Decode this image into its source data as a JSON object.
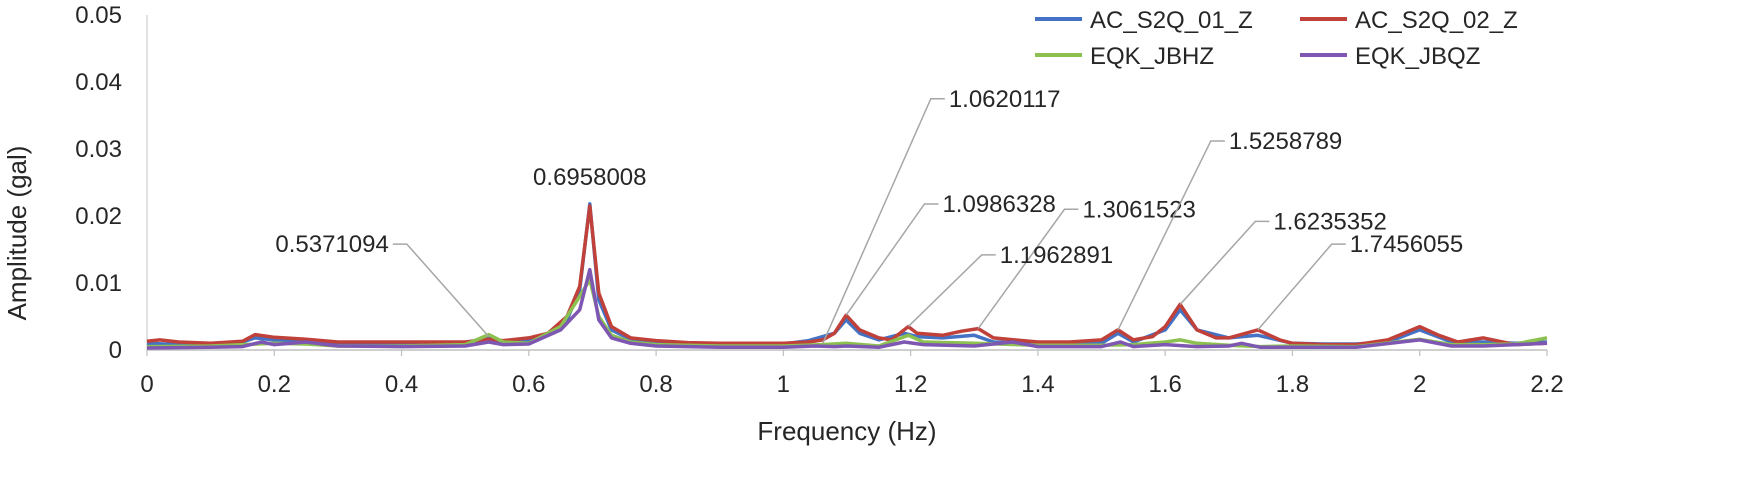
{
  "chart_data": {
    "type": "line",
    "title": "",
    "xlabel": "Frequency (Hz)",
    "ylabel": "Amplitude (gal)",
    "xlim": [
      0,
      2.2
    ],
    "ylim": [
      0,
      0.05
    ],
    "x_ticks": [
      "0",
      "0.2",
      "0.4",
      "0.6",
      "0.8",
      "1",
      "1.2",
      "1.4",
      "1.6",
      "1.8",
      "2",
      "2.2"
    ],
    "y_ticks": [
      "0",
      "0.01",
      "0.02",
      "0.03",
      "0.04",
      "0.05"
    ],
    "legend_position": "top-right",
    "series": [
      {
        "name": "AC_S2Q_01_Z",
        "color": "#4472C4",
        "points": [
          [
            0,
            0.001
          ],
          [
            0.05,
            0.0008
          ],
          [
            0.1,
            0.0009
          ],
          [
            0.15,
            0.0012
          ],
          [
            0.17,
            0.0018
          ],
          [
            0.2,
            0.0015
          ],
          [
            0.25,
            0.0013
          ],
          [
            0.3,
            0.001
          ],
          [
            0.35,
            0.0009
          ],
          [
            0.4,
            0.0009
          ],
          [
            0.45,
            0.001
          ],
          [
            0.5,
            0.0011
          ],
          [
            0.537,
            0.0018
          ],
          [
            0.56,
            0.0012
          ],
          [
            0.6,
            0.0015
          ],
          [
            0.63,
            0.0022
          ],
          [
            0.66,
            0.0045
          ],
          [
            0.68,
            0.009
          ],
          [
            0.6958,
            0.0218
          ],
          [
            0.71,
            0.0075
          ],
          [
            0.73,
            0.003
          ],
          [
            0.76,
            0.0016
          ],
          [
            0.8,
            0.0012
          ],
          [
            0.85,
            0.001
          ],
          [
            0.9,
            0.0009
          ],
          [
            0.95,
            0.0009
          ],
          [
            1.0,
            0.0009
          ],
          [
            1.04,
            0.0014
          ],
          [
            1.062,
            0.002
          ],
          [
            1.08,
            0.0025
          ],
          [
            1.0986,
            0.0045
          ],
          [
            1.12,
            0.0025
          ],
          [
            1.15,
            0.0015
          ],
          [
            1.19,
            0.0025
          ],
          [
            1.21,
            0.002
          ],
          [
            1.25,
            0.0018
          ],
          [
            1.3,
            0.0022
          ],
          [
            1.33,
            0.0012
          ],
          [
            1.4,
            0.001
          ],
          [
            1.45,
            0.001
          ],
          [
            1.5,
            0.001
          ],
          [
            1.526,
            0.0025
          ],
          [
            1.55,
            0.0012
          ],
          [
            1.6,
            0.003
          ],
          [
            1.6235,
            0.006
          ],
          [
            1.65,
            0.003
          ],
          [
            1.7,
            0.0018
          ],
          [
            1.7456,
            0.0022
          ],
          [
            1.8,
            0.001
          ],
          [
            1.85,
            0.0009
          ],
          [
            1.9,
            0.0009
          ],
          [
            1.95,
            0.0012
          ],
          [
            2.0,
            0.003
          ],
          [
            2.05,
            0.0012
          ],
          [
            2.1,
            0.0012
          ],
          [
            2.15,
            0.001
          ],
          [
            2.2,
            0.0012
          ]
        ]
      },
      {
        "name": "AC_S2Q_02_Z",
        "color": "#C0403A",
        "points": [
          [
            0,
            0.0013
          ],
          [
            0.02,
            0.0015
          ],
          [
            0.05,
            0.0012
          ],
          [
            0.1,
            0.001
          ],
          [
            0.15,
            0.0013
          ],
          [
            0.17,
            0.0023
          ],
          [
            0.2,
            0.0019
          ],
          [
            0.25,
            0.0016
          ],
          [
            0.3,
            0.0012
          ],
          [
            0.35,
            0.0012
          ],
          [
            0.4,
            0.0012
          ],
          [
            0.45,
            0.0012
          ],
          [
            0.5,
            0.0012
          ],
          [
            0.537,
            0.0016
          ],
          [
            0.56,
            0.0014
          ],
          [
            0.6,
            0.0018
          ],
          [
            0.63,
            0.0025
          ],
          [
            0.66,
            0.005
          ],
          [
            0.68,
            0.0095
          ],
          [
            0.6958,
            0.0215
          ],
          [
            0.71,
            0.0085
          ],
          [
            0.73,
            0.0035
          ],
          [
            0.76,
            0.0018
          ],
          [
            0.8,
            0.0014
          ],
          [
            0.85,
            0.0011
          ],
          [
            0.9,
            0.001
          ],
          [
            0.95,
            0.001
          ],
          [
            1.0,
            0.001
          ],
          [
            1.04,
            0.0012
          ],
          [
            1.062,
            0.0015
          ],
          [
            1.08,
            0.0025
          ],
          [
            1.0986,
            0.0052
          ],
          [
            1.12,
            0.003
          ],
          [
            1.15,
            0.0018
          ],
          [
            1.17,
            0.0015
          ],
          [
            1.1963,
            0.0035
          ],
          [
            1.21,
            0.0025
          ],
          [
            1.25,
            0.0022
          ],
          [
            1.28,
            0.0028
          ],
          [
            1.3062,
            0.0032
          ],
          [
            1.33,
            0.0018
          ],
          [
            1.4,
            0.0012
          ],
          [
            1.45,
            0.0012
          ],
          [
            1.5,
            0.0015
          ],
          [
            1.5259,
            0.003
          ],
          [
            1.55,
            0.0015
          ],
          [
            1.58,
            0.002
          ],
          [
            1.6,
            0.0035
          ],
          [
            1.6235,
            0.0068
          ],
          [
            1.65,
            0.003
          ],
          [
            1.68,
            0.0018
          ],
          [
            1.7,
            0.0018
          ],
          [
            1.7456,
            0.003
          ],
          [
            1.78,
            0.0015
          ],
          [
            1.8,
            0.001
          ],
          [
            1.85,
            0.0008
          ],
          [
            1.9,
            0.0008
          ],
          [
            1.95,
            0.0015
          ],
          [
            2.0,
            0.0035
          ],
          [
            2.03,
            0.0022
          ],
          [
            2.06,
            0.0012
          ],
          [
            2.1,
            0.0018
          ],
          [
            2.15,
            0.0008
          ],
          [
            2.2,
            0.001
          ]
        ]
      },
      {
        "name": "EQK_JBHZ",
        "color": "#8CC152",
        "points": [
          [
            0,
            0.0005
          ],
          [
            0.1,
            0.0006
          ],
          [
            0.2,
            0.001
          ],
          [
            0.25,
            0.0009
          ],
          [
            0.3,
            0.0006
          ],
          [
            0.4,
            0.0006
          ],
          [
            0.5,
            0.0008
          ],
          [
            0.537,
            0.0023
          ],
          [
            0.56,
            0.0012
          ],
          [
            0.6,
            0.001
          ],
          [
            0.65,
            0.0035
          ],
          [
            0.68,
            0.008
          ],
          [
            0.6958,
            0.0105
          ],
          [
            0.71,
            0.005
          ],
          [
            0.73,
            0.0022
          ],
          [
            0.76,
            0.0012
          ],
          [
            0.8,
            0.0008
          ],
          [
            0.9,
            0.0006
          ],
          [
            1.0,
            0.0006
          ],
          [
            1.06,
            0.0008
          ],
          [
            1.0986,
            0.001
          ],
          [
            1.15,
            0.0006
          ],
          [
            1.1963,
            0.0022
          ],
          [
            1.22,
            0.0012
          ],
          [
            1.3,
            0.001
          ],
          [
            1.4,
            0.0007
          ],
          [
            1.5,
            0.0007
          ],
          [
            1.55,
            0.0008
          ],
          [
            1.6,
            0.0012
          ],
          [
            1.6235,
            0.0015
          ],
          [
            1.65,
            0.001
          ],
          [
            1.7,
            0.0007
          ],
          [
            1.75,
            0.0005
          ],
          [
            1.8,
            0.0006
          ],
          [
            1.9,
            0.0005
          ],
          [
            2.0,
            0.0016
          ],
          [
            2.05,
            0.0008
          ],
          [
            2.1,
            0.0008
          ],
          [
            2.15,
            0.0009
          ],
          [
            2.2,
            0.0018
          ]
        ]
      },
      {
        "name": "EQK_JBQZ",
        "color": "#7E57B2",
        "points": [
          [
            0,
            0.0003
          ],
          [
            0.1,
            0.0004
          ],
          [
            0.15,
            0.0005
          ],
          [
            0.18,
            0.0012
          ],
          [
            0.2,
            0.0008
          ],
          [
            0.25,
            0.0012
          ],
          [
            0.3,
            0.0006
          ],
          [
            0.4,
            0.0005
          ],
          [
            0.5,
            0.0006
          ],
          [
            0.537,
            0.0012
          ],
          [
            0.56,
            0.0008
          ],
          [
            0.6,
            0.0009
          ],
          [
            0.65,
            0.003
          ],
          [
            0.68,
            0.006
          ],
          [
            0.6958,
            0.012
          ],
          [
            0.71,
            0.0045
          ],
          [
            0.73,
            0.0018
          ],
          [
            0.76,
            0.001
          ],
          [
            0.8,
            0.0006
          ],
          [
            0.9,
            0.0004
          ],
          [
            1.0,
            0.0004
          ],
          [
            1.05,
            0.0006
          ],
          [
            1.08,
            0.0005
          ],
          [
            1.1,
            0.0006
          ],
          [
            1.15,
            0.0004
          ],
          [
            1.19,
            0.0012
          ],
          [
            1.22,
            0.0008
          ],
          [
            1.3,
            0.0006
          ],
          [
            1.36,
            0.0012
          ],
          [
            1.4,
            0.0005
          ],
          [
            1.5,
            0.0005
          ],
          [
            1.53,
            0.0012
          ],
          [
            1.55,
            0.0005
          ],
          [
            1.6,
            0.0008
          ],
          [
            1.65,
            0.0005
          ],
          [
            1.7,
            0.0006
          ],
          [
            1.72,
            0.001
          ],
          [
            1.75,
            0.0004
          ],
          [
            1.8,
            0.0004
          ],
          [
            1.9,
            0.0004
          ],
          [
            2.0,
            0.0015
          ],
          [
            2.05,
            0.0006
          ],
          [
            2.1,
            0.0006
          ],
          [
            2.2,
            0.001
          ]
        ]
      }
    ],
    "annotations": [
      {
        "label": "0.5371094",
        "x": 0.5371094,
        "y": 0.002,
        "label_x": 0.38,
        "label_y": 0.0158
      },
      {
        "label": "0.6958008",
        "x": 0.6958008,
        "y": 0.0218,
        "label_x": 0.6958,
        "label_y": 0.0258
      },
      {
        "label": "1.0620117",
        "x": 1.0620117,
        "y": 0.001,
        "label_x": 1.26,
        "label_y": 0.0375
      },
      {
        "label": "1.0986328",
        "x": 1.0986328,
        "y": 0.0052,
        "label_x": 1.25,
        "label_y": 0.0218
      },
      {
        "label": "1.3061523",
        "x": 1.3061523,
        "y": 0.0032,
        "label_x": 1.47,
        "label_y": 0.021
      },
      {
        "label": "1.1962891",
        "x": 1.1962891,
        "y": 0.0035,
        "label_x": 1.34,
        "label_y": 0.0142
      },
      {
        "label": "1.5258789",
        "x": 1.5258789,
        "y": 0.003,
        "label_x": 1.7,
        "label_y": 0.0312
      },
      {
        "label": "1.6235352",
        "x": 1.6235352,
        "y": 0.0068,
        "label_x": 1.77,
        "label_y": 0.0192
      },
      {
        "label": "1.7456055",
        "x": 1.7456055,
        "y": 0.003,
        "label_x": 1.89,
        "label_y": 0.0158
      }
    ]
  }
}
